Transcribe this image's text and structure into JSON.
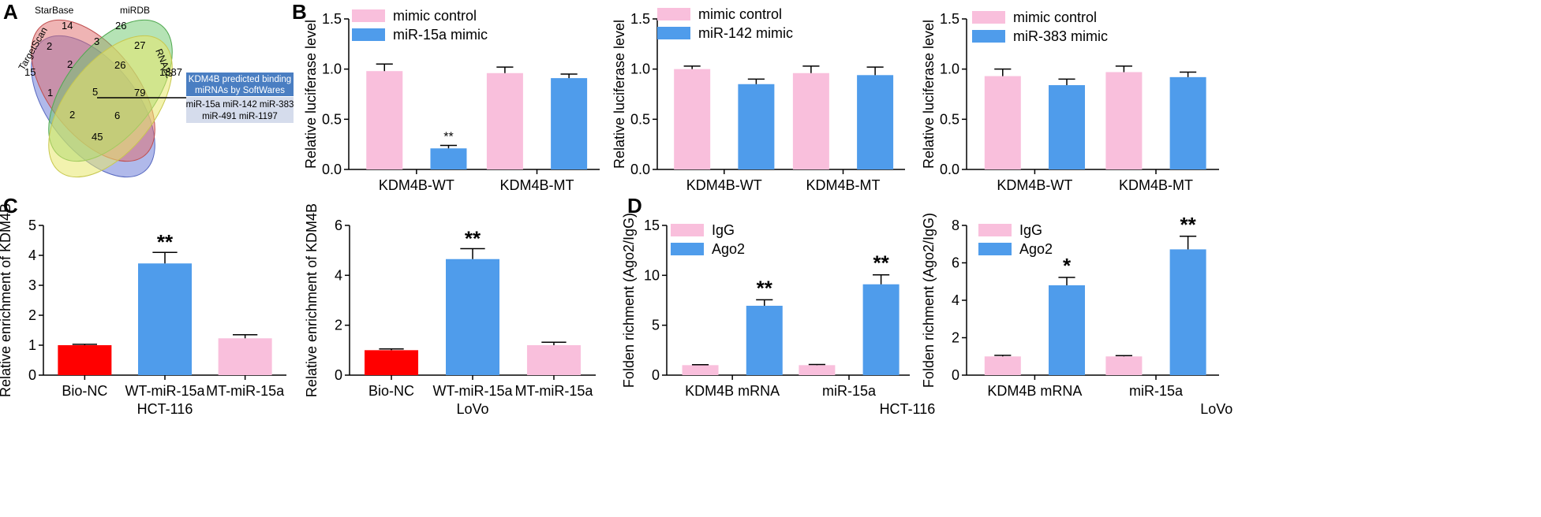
{
  "panels": {
    "A": {
      "letter": "A",
      "venn": {
        "sets": [
          {
            "name": "TargetScan",
            "color": "#6f7fd8"
          },
          {
            "name": "StarBase",
            "color": "#e06a6a"
          },
          {
            "name": "miRDB",
            "color": "#6cc76c"
          },
          {
            "name": "RNA22",
            "color": "#e8e86c"
          }
        ],
        "regions": {
          "ts_only": "15",
          "sb_only": "14",
          "mi_only": "26",
          "rna_only": "1887",
          "ts_sb": "2",
          "sb_mi": "3",
          "ts_sb_mi": "2",
          "sb_mi_rna": "26",
          "mi_rna": "27",
          "ts_mi": "1",
          "all": "5",
          "sb_rna": "79",
          "ts_mi_rna": "2",
          "ts_sb_rna": "6",
          "ts_rna": "45"
        },
        "note": {
          "title_line1": "KDM4B predicted binding",
          "title_line2": "miRNAs by SoftWares",
          "list_line1": "miR-15a miR-142 miR-383",
          "list_line2": "miR-491 miR-1197"
        }
      }
    },
    "B": {
      "letter": "B"
    },
    "C": {
      "letter": "C"
    },
    "D": {
      "letter": "D"
    }
  },
  "chart_data": [
    {
      "id": "B1",
      "type": "bar",
      "ylabel": "Relative luciferase level",
      "ylim": [
        0,
        1.5
      ],
      "yticks": [
        "0.0",
        "0.5",
        "1.0",
        "1.5"
      ],
      "categories": [
        "KDM4B-WT",
        "KDM4B-MT"
      ],
      "series": [
        {
          "name": "mimic control",
          "color": "#f9bfdc",
          "values": [
            0.98,
            0.96
          ],
          "errors": [
            0.07,
            0.06
          ]
        },
        {
          "name": "miR-15a mimic",
          "color": "#4f9ceb",
          "values": [
            0.21,
            0.91
          ],
          "errors": [
            0.03,
            0.04
          ]
        }
      ],
      "annotations": [
        {
          "series": 1,
          "category": 0,
          "text": "**",
          "small": true
        }
      ],
      "legend": "top-left"
    },
    {
      "id": "B2",
      "type": "bar",
      "ylabel": "Relative luciferase level",
      "ylim": [
        0,
        1.5
      ],
      "yticks": [
        "0.0",
        "0.5",
        "1.0",
        "1.5"
      ],
      "categories": [
        "KDM4B-WT",
        "KDM4B-MT"
      ],
      "series": [
        {
          "name": "mimic control",
          "color": "#f9bfdc",
          "values": [
            1.0,
            0.96
          ],
          "errors": [
            0.03,
            0.07
          ]
        },
        {
          "name": "miR-142 mimic",
          "color": "#4f9ceb",
          "values": [
            0.85,
            0.94
          ],
          "errors": [
            0.05,
            0.08
          ]
        }
      ],
      "annotations": [],
      "legend": "top-left"
    },
    {
      "id": "B3",
      "type": "bar",
      "ylabel": "Relative luciferase level",
      "ylim": [
        0,
        1.5
      ],
      "yticks": [
        "0.0",
        "0.5",
        "1.0",
        "1.5"
      ],
      "categories": [
        "KDM4B-WT",
        "KDM4B-MT"
      ],
      "series": [
        {
          "name": "mimic control",
          "color": "#f9bfdc",
          "values": [
            0.93,
            0.97
          ],
          "errors": [
            0.07,
            0.06
          ]
        },
        {
          "name": "miR-383 mimic",
          "color": "#4f9ceb",
          "values": [
            0.84,
            0.92
          ],
          "errors": [
            0.06,
            0.05
          ]
        }
      ],
      "annotations": [],
      "legend": "top-left"
    },
    {
      "id": "C1",
      "type": "bar",
      "ylabel": "Relative enrichment of KDM4B",
      "ylim": [
        0,
        5
      ],
      "yticks": [
        "0",
        "1",
        "2",
        "3",
        "4",
        "5"
      ],
      "categories": [
        "Bio-NC",
        "WT-miR-15a",
        "MT-miR-15a"
      ],
      "bar_colors": [
        "#ff0000",
        "#4f9ceb",
        "#f9bfdc"
      ],
      "values": [
        1.0,
        3.73,
        1.23
      ],
      "errors": [
        0.03,
        0.37,
        0.12
      ],
      "annotations": [
        {
          "category": 1,
          "text": "**"
        }
      ],
      "xlabel": "HCT-116"
    },
    {
      "id": "C2",
      "type": "bar",
      "ylabel": "Relative enrichment of KDM4B",
      "ylim": [
        0,
        6
      ],
      "yticks": [
        "0",
        "2",
        "4",
        "6"
      ],
      "categories": [
        "Bio-NC",
        "WT-miR-15a",
        "MT-miR-15a"
      ],
      "bar_colors": [
        "#ff0000",
        "#4f9ceb",
        "#f9bfdc"
      ],
      "values": [
        1.0,
        4.65,
        1.2
      ],
      "errors": [
        0.05,
        0.42,
        0.12
      ],
      "annotations": [
        {
          "category": 1,
          "text": "**"
        }
      ],
      "xlabel": "LoVo"
    },
    {
      "id": "D1",
      "type": "bar",
      "ylabel": "Folden richment (Ago2/IgG)",
      "ylim": [
        0,
        15
      ],
      "yticks": [
        "0",
        "5",
        "10",
        "15"
      ],
      "categories": [
        "KDM4B mRNA",
        "miR-15a"
      ],
      "series": [
        {
          "name": "IgG",
          "color": "#f9bfdc",
          "values": [
            1.0,
            1.0
          ],
          "errors": [
            0.05,
            0.07
          ]
        },
        {
          "name": "Ago2",
          "color": "#4f9ceb",
          "values": [
            6.95,
            9.1
          ],
          "errors": [
            0.6,
            0.95
          ]
        }
      ],
      "annotations": [
        {
          "series": 1,
          "category": 0,
          "text": "**"
        },
        {
          "series": 1,
          "category": 1,
          "text": "**"
        }
      ],
      "legend": "top-left",
      "xlabel": "HCT-116"
    },
    {
      "id": "D2",
      "type": "bar",
      "ylabel": "Folden richment (Ago2/IgG)",
      "ylim": [
        0,
        8
      ],
      "yticks": [
        "0",
        "2",
        "4",
        "6",
        "8"
      ],
      "categories": [
        "KDM4B mRNA",
        "miR-15a"
      ],
      "series": [
        {
          "name": "IgG",
          "color": "#f9bfdc",
          "values": [
            1.0,
            1.0
          ],
          "errors": [
            0.06,
            0.04
          ]
        },
        {
          "name": "Ago2",
          "color": "#4f9ceb",
          "values": [
            4.8,
            6.72
          ],
          "errors": [
            0.42,
            0.7
          ]
        }
      ],
      "annotations": [
        {
          "series": 1,
          "category": 0,
          "text": "*"
        },
        {
          "series": 1,
          "category": 1,
          "text": "**"
        }
      ],
      "legend": "top-left",
      "xlabel": "LoVo"
    }
  ]
}
